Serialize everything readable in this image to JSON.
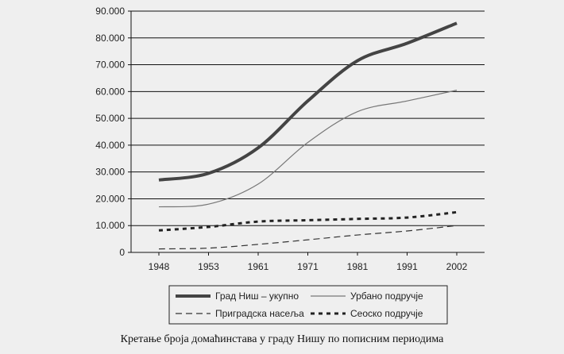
{
  "chart_data": {
    "type": "line",
    "title": "",
    "xlabel": "",
    "ylabel": "",
    "x": [
      "1948",
      "1953",
      "1961",
      "1971",
      "1981",
      "1991",
      "2002"
    ],
    "y_ticks": [
      "0",
      "10.000",
      "20.000",
      "30.000",
      "40.000",
      "50.000",
      "60.000",
      "70.000",
      "80.000",
      "90.000"
    ],
    "ylim": [
      0,
      90000
    ],
    "grid": true,
    "legend_position": "bottom",
    "series": [
      {
        "name": "Град Ниш – укупно",
        "values": [
          27000,
          29500,
          39000,
          56500,
          71500,
          78000,
          85500
        ],
        "color": "#444444",
        "style": "thick-solid"
      },
      {
        "name": "Урбано подручје",
        "values": [
          17000,
          18000,
          25500,
          41000,
          52500,
          56500,
          60500
        ],
        "color": "#777777",
        "style": "thin-solid"
      },
      {
        "name": "Приградска насеља",
        "values": [
          1300,
          1600,
          3000,
          4700,
          6500,
          8000,
          10000
        ],
        "color": "#333333",
        "style": "dashed"
      },
      {
        "name": "Сеоско подручје",
        "values": [
          8200,
          9500,
          11500,
          12000,
          12500,
          13000,
          15000
        ],
        "color": "#222222",
        "style": "dotted"
      }
    ]
  },
  "caption": "Кретање броја домаћинстава у граду Нишу по пописним периодима"
}
